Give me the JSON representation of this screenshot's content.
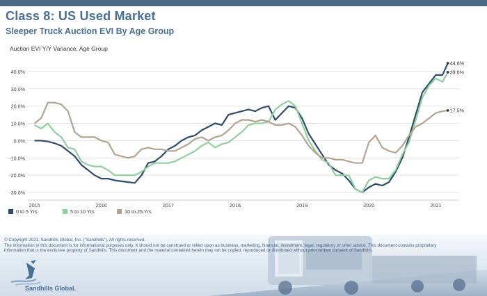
{
  "header": {
    "title": "Class 8:  US Used Market",
    "subtitle": "Sleeper Truck Auction EVI By Age Group"
  },
  "footer": {
    "copyright": "© Copyright 2021, Sandhills Global, Inc. (\"Sandhills\"). All rights reserved.",
    "disclaimer_1": "The information in this document is for informational purposes only.  It should not be construed or relied upon as business, marketing, financial, investment, legal, regulatory or other advice. This document contains proprietary",
    "disclaimer_2": "information that is the exclusive property of Sandhills. This document and the material contained herein may not be copied, reproduced or distributed without prior written consent of Sandhills.",
    "brand": "Sandhills Global."
  },
  "colors": {
    "series_0_5": "#2f4b6b",
    "series_5_10": "#8fcf9c",
    "series_10_25": "#b3a390",
    "title": "#4a6f96"
  },
  "chart_data": {
    "type": "line",
    "title": "Auction EVI Y/Y Variance, Age Group",
    "xlabel": "",
    "ylabel": "",
    "ylim": [
      -0.32,
      0.46
    ],
    "yticks": [
      {
        "v": -0.3,
        "label": "-30.0%"
      },
      {
        "v": -0.2,
        "label": "-20.0%"
      },
      {
        "v": -0.1,
        "label": "-10.0%"
      },
      {
        "v": 0.0,
        "label": "0.0%"
      },
      {
        "v": 0.1,
        "label": "10.0%"
      },
      {
        "v": 0.2,
        "label": "20.0%"
      },
      {
        "v": 0.3,
        "label": "30.0%"
      },
      {
        "v": 0.4,
        "label": "40.0%"
      }
    ],
    "xlim": [
      2014.9,
      2021.35
    ],
    "xticks": [
      {
        "v": 2015,
        "label": "2015"
      },
      {
        "v": 2016,
        "label": "2016"
      },
      {
        "v": 2017,
        "label": "2017"
      },
      {
        "v": 2018,
        "label": "2018"
      },
      {
        "v": 2019,
        "label": "2019"
      },
      {
        "v": 2020,
        "label": "2020"
      },
      {
        "v": 2021,
        "label": "2021"
      }
    ],
    "grid": "horizontal",
    "legend_position": "bottom-left",
    "end_labels": [
      "44.8%",
      "39.6%",
      "17.5%"
    ],
    "series": [
      {
        "name": "0 to 5 Yrs",
        "color": "#2f4b6b",
        "points": [
          [
            2015.0,
            0.0
          ],
          [
            2015.1,
            0.0
          ],
          [
            2015.2,
            -0.005
          ],
          [
            2015.3,
            -0.015
          ],
          [
            2015.4,
            -0.03
          ],
          [
            2015.5,
            -0.06
          ],
          [
            2015.6,
            -0.09
          ],
          [
            2015.7,
            -0.14
          ],
          [
            2015.8,
            -0.17
          ],
          [
            2015.9,
            -0.2
          ],
          [
            2016.0,
            -0.22
          ],
          [
            2016.1,
            -0.22
          ],
          [
            2016.2,
            -0.23
          ],
          [
            2016.3,
            -0.235
          ],
          [
            2016.4,
            -0.24
          ],
          [
            2016.5,
            -0.245
          ],
          [
            2016.6,
            -0.2
          ],
          [
            2016.7,
            -0.13
          ],
          [
            2016.8,
            -0.12
          ],
          [
            2016.9,
            -0.09
          ],
          [
            2017.0,
            -0.05
          ],
          [
            2017.1,
            -0.03
          ],
          [
            2017.2,
            0.0
          ],
          [
            2017.3,
            0.02
          ],
          [
            2017.4,
            0.03
          ],
          [
            2017.5,
            0.06
          ],
          [
            2017.6,
            0.08
          ],
          [
            2017.7,
            0.1
          ],
          [
            2017.8,
            0.09
          ],
          [
            2017.9,
            0.15
          ],
          [
            2018.0,
            0.16
          ],
          [
            2018.1,
            0.17
          ],
          [
            2018.2,
            0.18
          ],
          [
            2018.3,
            0.17
          ],
          [
            2018.4,
            0.19
          ],
          [
            2018.5,
            0.2
          ],
          [
            2018.6,
            0.12
          ],
          [
            2018.7,
            0.16
          ],
          [
            2018.8,
            0.2
          ],
          [
            2018.9,
            0.19
          ],
          [
            2019.0,
            0.13
          ],
          [
            2019.1,
            0.04
          ],
          [
            2019.2,
            -0.02
          ],
          [
            2019.3,
            -0.08
          ],
          [
            2019.4,
            -0.14
          ],
          [
            2019.5,
            -0.17
          ],
          [
            2019.6,
            -0.19
          ],
          [
            2019.7,
            -0.23
          ],
          [
            2019.8,
            -0.28
          ],
          [
            2019.9,
            -0.3
          ],
          [
            2020.0,
            -0.27
          ],
          [
            2020.1,
            -0.25
          ],
          [
            2020.2,
            -0.26
          ],
          [
            2020.3,
            -0.24
          ],
          [
            2020.4,
            -0.18
          ],
          [
            2020.5,
            -0.1
          ],
          [
            2020.6,
            0.02
          ],
          [
            2020.7,
            0.15
          ],
          [
            2020.8,
            0.28
          ],
          [
            2020.9,
            0.33
          ],
          [
            2021.0,
            0.38
          ],
          [
            2021.1,
            0.38
          ],
          [
            2021.18,
            0.448
          ]
        ]
      },
      {
        "name": "5 to 10 Yrs",
        "color": "#8fcf9c",
        "points": [
          [
            2015.0,
            0.09
          ],
          [
            2015.1,
            0.07
          ],
          [
            2015.2,
            0.1
          ],
          [
            2015.3,
            0.05
          ],
          [
            2015.4,
            0.02
          ],
          [
            2015.5,
            -0.04
          ],
          [
            2015.6,
            -0.05
          ],
          [
            2015.7,
            -0.12
          ],
          [
            2015.8,
            -0.14
          ],
          [
            2015.9,
            -0.15
          ],
          [
            2016.0,
            -0.15
          ],
          [
            2016.1,
            -0.17
          ],
          [
            2016.2,
            -0.2
          ],
          [
            2016.3,
            -0.2
          ],
          [
            2016.4,
            -0.2
          ],
          [
            2016.5,
            -0.2
          ],
          [
            2016.6,
            -0.18
          ],
          [
            2016.7,
            -0.15
          ],
          [
            2016.8,
            -0.13
          ],
          [
            2016.9,
            -0.13
          ],
          [
            2017.0,
            -0.13
          ],
          [
            2017.1,
            -0.12
          ],
          [
            2017.2,
            -0.1
          ],
          [
            2017.3,
            -0.08
          ],
          [
            2017.4,
            -0.06
          ],
          [
            2017.5,
            -0.03
          ],
          [
            2017.6,
            -0.01
          ],
          [
            2017.7,
            -0.04
          ],
          [
            2017.8,
            -0.02
          ],
          [
            2017.9,
            -0.01
          ],
          [
            2018.0,
            0.02
          ],
          [
            2018.1,
            0.05
          ],
          [
            2018.2,
            0.09
          ],
          [
            2018.3,
            0.1
          ],
          [
            2018.4,
            0.1
          ],
          [
            2018.5,
            0.11
          ],
          [
            2018.6,
            0.18
          ],
          [
            2018.7,
            0.21
          ],
          [
            2018.8,
            0.23
          ],
          [
            2018.9,
            0.2
          ],
          [
            2019.0,
            0.1
          ],
          [
            2019.1,
            0.0
          ],
          [
            2019.2,
            -0.06
          ],
          [
            2019.3,
            -0.11
          ],
          [
            2019.4,
            -0.13
          ],
          [
            2019.5,
            -0.2
          ],
          [
            2019.6,
            -0.2
          ],
          [
            2019.7,
            -0.2
          ],
          [
            2019.8,
            -0.28
          ],
          [
            2019.9,
            -0.3
          ],
          [
            2020.0,
            -0.23
          ],
          [
            2020.1,
            -0.21
          ],
          [
            2020.2,
            -0.22
          ],
          [
            2020.3,
            -0.22
          ],
          [
            2020.4,
            -0.17
          ],
          [
            2020.5,
            -0.08
          ],
          [
            2020.6,
            -0.01
          ],
          [
            2020.7,
            0.12
          ],
          [
            2020.8,
            0.25
          ],
          [
            2020.9,
            0.32
          ],
          [
            2021.0,
            0.36
          ],
          [
            2021.1,
            0.34
          ],
          [
            2021.18,
            0.396
          ]
        ]
      },
      {
        "name": "10 to 25 Yrs",
        "color": "#b3a390",
        "points": [
          [
            2015.0,
            0.1
          ],
          [
            2015.1,
            0.13
          ],
          [
            2015.2,
            0.22
          ],
          [
            2015.3,
            0.22
          ],
          [
            2015.4,
            0.21
          ],
          [
            2015.5,
            0.17
          ],
          [
            2015.6,
            0.05
          ],
          [
            2015.7,
            0.02
          ],
          [
            2015.8,
            0.02
          ],
          [
            2015.9,
            0.02
          ],
          [
            2016.0,
            0.0
          ],
          [
            2016.1,
            -0.01
          ],
          [
            2016.2,
            -0.08
          ],
          [
            2016.3,
            -0.09
          ],
          [
            2016.4,
            -0.1
          ],
          [
            2016.5,
            -0.09
          ],
          [
            2016.6,
            -0.05
          ],
          [
            2016.7,
            -0.04
          ],
          [
            2016.8,
            -0.05
          ],
          [
            2016.9,
            -0.05
          ],
          [
            2017.0,
            -0.06
          ],
          [
            2017.1,
            -0.06
          ],
          [
            2017.2,
            -0.04
          ],
          [
            2017.3,
            -0.02
          ],
          [
            2017.4,
            0.01
          ],
          [
            2017.5,
            0.02
          ],
          [
            2017.6,
            0.0
          ],
          [
            2017.7,
            0.02
          ],
          [
            2017.8,
            0.03
          ],
          [
            2017.9,
            0.06
          ],
          [
            2018.0,
            0.1
          ],
          [
            2018.1,
            0.12
          ],
          [
            2018.2,
            0.12
          ],
          [
            2018.3,
            0.11
          ],
          [
            2018.4,
            0.12
          ],
          [
            2018.5,
            0.11
          ],
          [
            2018.6,
            0.09
          ],
          [
            2018.7,
            0.09
          ],
          [
            2018.8,
            0.1
          ],
          [
            2018.9,
            0.08
          ],
          [
            2019.0,
            0.03
          ],
          [
            2019.1,
            -0.03
          ],
          [
            2019.2,
            -0.07
          ],
          [
            2019.3,
            -0.1
          ],
          [
            2019.4,
            -0.1
          ],
          [
            2019.5,
            -0.11
          ],
          [
            2019.6,
            -0.11
          ],
          [
            2019.7,
            -0.12
          ],
          [
            2019.8,
            -0.13
          ],
          [
            2019.9,
            -0.13
          ],
          [
            2020.0,
            -0.01
          ],
          [
            2020.1,
            0.03
          ],
          [
            2020.2,
            -0.04
          ],
          [
            2020.3,
            -0.06
          ],
          [
            2020.4,
            -0.07
          ],
          [
            2020.5,
            -0.03
          ],
          [
            2020.6,
            0.03
          ],
          [
            2020.7,
            0.08
          ],
          [
            2020.8,
            0.1
          ],
          [
            2020.9,
            0.13
          ],
          [
            2021.0,
            0.16
          ],
          [
            2021.1,
            0.17
          ],
          [
            2021.18,
            0.175
          ]
        ]
      }
    ]
  }
}
